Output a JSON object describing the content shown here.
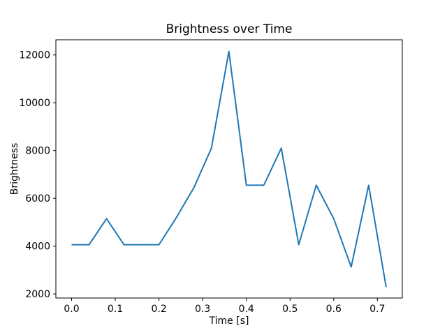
{
  "chart_data": {
    "type": "line",
    "title": "Brightness over Time",
    "xlabel": "Time [s]",
    "ylabel": "Brightness",
    "grid": false,
    "legend": null,
    "line_color": "#1f77b4",
    "background_color": "#ffffff",
    "axis_color": "#000000",
    "x": [
      0.0,
      0.04,
      0.08,
      0.12,
      0.16,
      0.2,
      0.24,
      0.28,
      0.32,
      0.36,
      0.4,
      0.44,
      0.48,
      0.52,
      0.56,
      0.6,
      0.64,
      0.68,
      0.72
    ],
    "y": [
      4060,
      4060,
      5150,
      4060,
      4060,
      4060,
      5200,
      6450,
      8100,
      12150,
      6550,
      6550,
      8100,
      4060,
      6550,
      5150,
      3130,
      6550,
      2290
    ],
    "xlim": [
      -0.036,
      0.757
    ],
    "ylim": [
      1830,
      12635
    ],
    "xticks": {
      "values": [
        0.0,
        0.1,
        0.2,
        0.3,
        0.4,
        0.5,
        0.6,
        0.7
      ],
      "labels": [
        "0.0",
        "0.1",
        "0.2",
        "0.3",
        "0.4",
        "0.5",
        "0.6",
        "0.7"
      ]
    },
    "yticks": {
      "values": [
        2000,
        4000,
        6000,
        8000,
        10000,
        12000
      ],
      "labels": [
        "2000",
        "4000",
        "6000",
        "8000",
        "10000",
        "12000"
      ]
    }
  }
}
